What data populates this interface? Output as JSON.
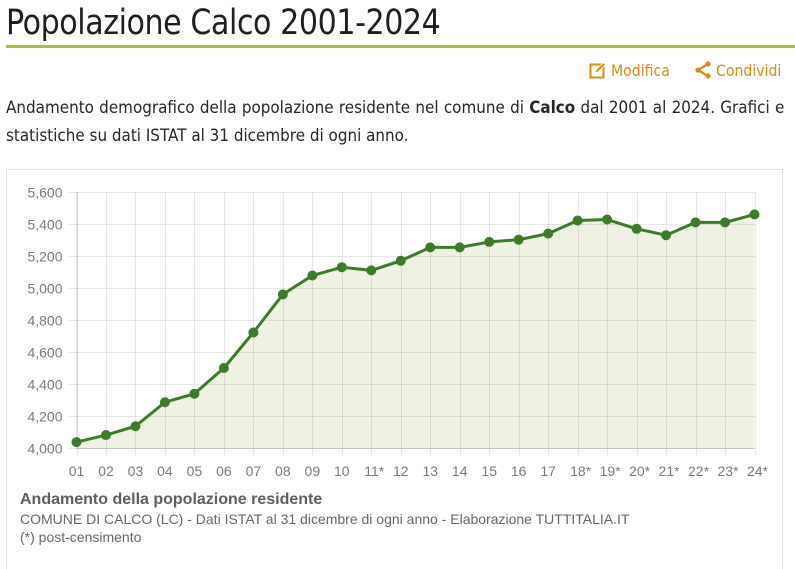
{
  "header": {
    "title": "Popolazione Calco 2001-2024",
    "actions": [
      {
        "label": "Modifica",
        "icon": "edit-icon"
      },
      {
        "label": "Condividi",
        "icon": "share-icon"
      }
    ],
    "accent_color": "#9fc33b",
    "action_color": "#e08a12"
  },
  "intro": {
    "before": "Andamento demografico della popolazione residente nel comune di ",
    "bold": "Calco",
    "after": " dal 2001 al 2024. Grafici e statistiche su dati ISTAT al 31 dicembre di ogni anno."
  },
  "caption": {
    "title": "Andamento della popolazione residente",
    "source": "COMUNE DI CALCO (LC) - Dati ISTAT al 31 dicembre di ogni anno - Elaborazione TUTTITALIA.IT",
    "note": "(*) post-censimento"
  },
  "chart_data": {
    "type": "area",
    "title": "Andamento della popolazione residente",
    "subtitle": "COMUNE DI CALCO (LC) - Dati ISTAT al 31 dicembre di ogni anno - Elaborazione TUTTITALIA.IT",
    "note": "(*) post-censimento",
    "xlabel": "",
    "ylabel": "",
    "categories": [
      "01",
      "02",
      "03",
      "04",
      "05",
      "06",
      "07",
      "08",
      "09",
      "10",
      "11*",
      "12",
      "13",
      "14",
      "15",
      "16",
      "17",
      "18*",
      "19*",
      "20*",
      "21*",
      "22*",
      "23*",
      "24*"
    ],
    "series": [
      {
        "name": "Popolazione residente",
        "values": [
          4037,
          4081,
          4136,
          4286,
          4339,
          4500,
          4722,
          4960,
          5078,
          5130,
          5110,
          5170,
          5254,
          5254,
          5288,
          5302,
          5340,
          5422,
          5428,
          5370,
          5330,
          5410,
          5410,
          5460
        ],
        "line_color": "#3d7a2a",
        "fill_color": "#eff1e3"
      }
    ],
    "ylim": [
      4000,
      5600
    ],
    "yticks": [
      4000,
      4200,
      4400,
      4600,
      4800,
      5000,
      5200,
      5400,
      5600
    ],
    "ytick_labels": [
      "4,000",
      "4,200",
      "4,400",
      "4,600",
      "4,800",
      "5,000",
      "5,200",
      "5,400",
      "5,600"
    ],
    "grid": true,
    "legend": "none",
    "markers": true
  }
}
